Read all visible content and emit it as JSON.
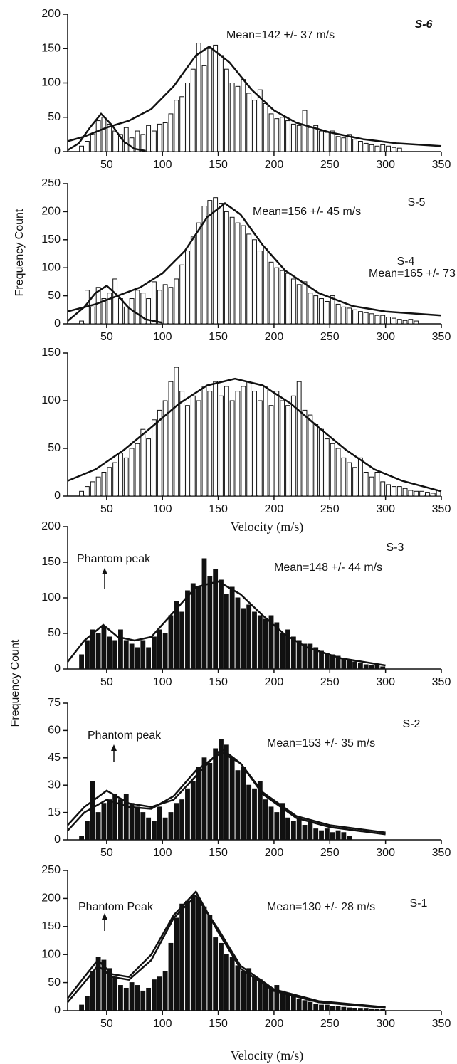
{
  "chart_data": [
    {
      "type": "histogram",
      "panel": "S-6",
      "annotation": "Mean=142 +/- 37 m/s",
      "color": "#ffffff",
      "xlim": [
        15,
        350
      ],
      "ylim": [
        0,
        200
      ],
      "xticks": [
        50,
        100,
        150,
        200,
        250,
        300,
        350
      ],
      "yticks": [
        0,
        50,
        100,
        150,
        200
      ],
      "bins": [
        25,
        30,
        35,
        40,
        45,
        50,
        55,
        60,
        65,
        70,
        75,
        80,
        85,
        90,
        95,
        100,
        105,
        110,
        115,
        120,
        125,
        130,
        135,
        140,
        145,
        150,
        155,
        160,
        165,
        170,
        175,
        180,
        185,
        190,
        195,
        200,
        205,
        210,
        215,
        220,
        225,
        230,
        235,
        240,
        245,
        250,
        255,
        260,
        265,
        270,
        275,
        280,
        285,
        290,
        295,
        300,
        305,
        310,
        315
      ],
      "counts": [
        8,
        15,
        25,
        45,
        50,
        40,
        30,
        25,
        35,
        20,
        30,
        25,
        38,
        30,
        40,
        42,
        55,
        75,
        80,
        100,
        120,
        158,
        125,
        150,
        155,
        140,
        120,
        100,
        95,
        105,
        85,
        75,
        90,
        70,
        55,
        48,
        50,
        45,
        40,
        38,
        60,
        35,
        38,
        30,
        28,
        30,
        22,
        20,
        25,
        18,
        15,
        12,
        10,
        8,
        10,
        8,
        6,
        5
      ],
      "curves": [
        {
          "x": [
            15,
            25,
            35,
            45,
            55,
            65,
            75,
            85
          ],
          "values": [
            2,
            12,
            35,
            55,
            38,
            15,
            4,
            1
          ]
        },
        {
          "x": [
            15,
            30,
            50,
            70,
            90,
            110,
            130,
            142,
            160,
            180,
            200,
            220,
            250,
            280,
            310,
            350
          ],
          "values": [
            15,
            22,
            35,
            45,
            62,
            95,
            140,
            153,
            130,
            90,
            60,
            42,
            28,
            18,
            12,
            8
          ]
        }
      ]
    },
    {
      "type": "histogram",
      "panel": "S-5",
      "annotation": "Mean=156 +/- 45 m/s",
      "ylabel": "Frequency Count",
      "color": "#ffffff",
      "xlim": [
        15,
        350
      ],
      "ylim": [
        0,
        250
      ],
      "xticks": [
        50,
        100,
        150,
        200,
        250,
        300,
        350
      ],
      "yticks": [
        0,
        50,
        100,
        150,
        200,
        250
      ],
      "bins": [
        25,
        30,
        35,
        40,
        45,
        50,
        55,
        60,
        65,
        70,
        75,
        80,
        85,
        90,
        95,
        100,
        105,
        110,
        115,
        120,
        125,
        130,
        135,
        140,
        145,
        150,
        155,
        160,
        165,
        170,
        175,
        180,
        185,
        190,
        195,
        200,
        205,
        210,
        215,
        220,
        225,
        230,
        235,
        240,
        245,
        250,
        255,
        260,
        265,
        270,
        275,
        280,
        285,
        290,
        295,
        300,
        305,
        310,
        315,
        320,
        325,
        330
      ],
      "counts": [
        5,
        60,
        30,
        65,
        45,
        55,
        80,
        45,
        30,
        45,
        60,
        55,
        45,
        75,
        60,
        70,
        65,
        80,
        105,
        130,
        155,
        180,
        210,
        220,
        225,
        215,
        200,
        190,
        180,
        175,
        160,
        150,
        130,
        135,
        110,
        100,
        95,
        90,
        80,
        70,
        75,
        55,
        50,
        45,
        40,
        50,
        35,
        30,
        28,
        25,
        22,
        20,
        18,
        15,
        15,
        12,
        10,
        8,
        6,
        8,
        5
      ],
      "curves": [
        {
          "x": [
            15,
            30,
            40,
            50,
            60,
            70,
            85,
            100
          ],
          "values": [
            5,
            30,
            55,
            68,
            50,
            28,
            8,
            2
          ]
        },
        {
          "x": [
            15,
            40,
            60,
            80,
            100,
            120,
            140,
            156,
            170,
            190,
            210,
            240,
            270,
            300,
            350
          ],
          "values": [
            22,
            35,
            50,
            65,
            90,
            130,
            190,
            215,
            195,
            140,
            95,
            55,
            32,
            22,
            15
          ]
        }
      ]
    },
    {
      "type": "histogram",
      "panel": "S-4",
      "annotation": "Mean=165 +/- 73",
      "xlabel": "Velocity (m/s)",
      "color": "#ffffff",
      "xlim": [
        15,
        350
      ],
      "ylim": [
        0,
        150
      ],
      "xticks": [
        50,
        100,
        150,
        200,
        250,
        300,
        350
      ],
      "yticks": [
        0,
        50,
        100,
        150
      ],
      "bins": [
        25,
        30,
        35,
        40,
        45,
        50,
        55,
        60,
        65,
        70,
        75,
        80,
        85,
        90,
        95,
        100,
        105,
        110,
        115,
        120,
        125,
        130,
        135,
        140,
        145,
        150,
        155,
        160,
        165,
        170,
        175,
        180,
        185,
        190,
        195,
        200,
        205,
        210,
        215,
        220,
        225,
        230,
        235,
        240,
        245,
        250,
        255,
        260,
        265,
        270,
        275,
        280,
        285,
        290,
        295,
        300,
        305,
        310,
        315,
        320,
        325,
        330,
        335,
        340,
        345,
        350
      ],
      "counts": [
        5,
        10,
        15,
        20,
        25,
        30,
        35,
        45,
        40,
        50,
        55,
        70,
        60,
        80,
        90,
        100,
        120,
        135,
        110,
        95,
        105,
        100,
        115,
        110,
        120,
        105,
        115,
        100,
        110,
        115,
        120,
        110,
        100,
        115,
        95,
        110,
        100,
        95,
        105,
        120,
        90,
        85,
        75,
        70,
        60,
        55,
        50,
        40,
        35,
        30,
        40,
        25,
        20,
        25,
        15,
        12,
        10,
        10,
        8,
        6,
        5,
        5,
        4,
        3,
        6
      ],
      "curves": [
        {
          "x": [
            15,
            40,
            65,
            90,
            115,
            140,
            165,
            190,
            215,
            240,
            265,
            290,
            315,
            350
          ],
          "values": [
            16,
            28,
            48,
            72,
            97,
            116,
            123,
            116,
            97,
            72,
            48,
            28,
            16,
            5
          ]
        }
      ]
    },
    {
      "type": "histogram",
      "panel": "S-3",
      "annotation": "Mean=148 +/- 44 m/s",
      "note": "Phantom peak",
      "color": "#111111",
      "xlim": [
        15,
        350
      ],
      "ylim": [
        0,
        200
      ],
      "xticks": [
        50,
        100,
        150,
        200,
        250,
        300,
        350
      ],
      "yticks": [
        0,
        50,
        100,
        150,
        200
      ],
      "bins": [
        25,
        30,
        35,
        40,
        45,
        50,
        55,
        60,
        65,
        70,
        75,
        80,
        85,
        90,
        95,
        100,
        105,
        110,
        115,
        120,
        125,
        130,
        135,
        140,
        145,
        150,
        155,
        160,
        165,
        170,
        175,
        180,
        185,
        190,
        195,
        200,
        205,
        210,
        215,
        220,
        225,
        230,
        235,
        240,
        245,
        250,
        255,
        260,
        265,
        270,
        275,
        280,
        285,
        290,
        295,
        300
      ],
      "counts": [
        20,
        40,
        55,
        50,
        60,
        45,
        40,
        55,
        40,
        35,
        30,
        40,
        30,
        45,
        55,
        50,
        75,
        95,
        80,
        110,
        120,
        115,
        155,
        130,
        140,
        125,
        105,
        115,
        100,
        85,
        90,
        80,
        75,
        70,
        75,
        65,
        50,
        55,
        45,
        40,
        35,
        35,
        30,
        25,
        22,
        20,
        18,
        15,
        12,
        10,
        8,
        6,
        5,
        6,
        3
      ],
      "curves": [
        {
          "x": [
            15,
            30,
            47,
            60,
            75,
            90,
            110,
            130,
            150,
            170,
            190,
            210,
            230,
            260,
            300
          ],
          "values": [
            10,
            40,
            62,
            45,
            40,
            45,
            80,
            115,
            123,
            105,
            75,
            48,
            30,
            15,
            5
          ]
        }
      ]
    },
    {
      "type": "histogram",
      "panel": "S-2",
      "annotation": "Mean=153 +/- 35  m/s",
      "note": "Phantom peak",
      "ylabel": "Frequency Count",
      "color": "#111111",
      "xlim": [
        15,
        350
      ],
      "ylim": [
        0,
        75
      ],
      "xticks": [
        50,
        100,
        150,
        200,
        250,
        300,
        350
      ],
      "yticks": [
        0,
        15,
        30,
        45,
        60,
        75
      ],
      "bins": [
        25,
        30,
        35,
        40,
        45,
        50,
        55,
        60,
        65,
        70,
        75,
        80,
        85,
        90,
        95,
        100,
        105,
        110,
        115,
        120,
        125,
        130,
        135,
        140,
        145,
        150,
        155,
        160,
        165,
        170,
        175,
        180,
        185,
        190,
        195,
        200,
        205,
        210,
        215,
        220,
        225,
        230,
        235,
        240,
        245,
        250,
        255,
        260,
        265,
        270
      ],
      "counts": [
        2,
        10,
        32,
        15,
        20,
        22,
        25,
        22,
        25,
        20,
        18,
        15,
        12,
        10,
        18,
        12,
        15,
        20,
        22,
        28,
        32,
        40,
        45,
        42,
        50,
        55,
        52,
        45,
        38,
        40,
        30,
        28,
        32,
        22,
        18,
        15,
        20,
        12,
        10,
        12,
        8,
        10,
        6,
        5,
        6,
        4,
        5,
        4,
        2
      ],
      "curves": [
        {
          "x": [
            15,
            30,
            50,
            70,
            90,
            110,
            130,
            153,
            170,
            190,
            220,
            250,
            300
          ],
          "values": [
            8,
            18,
            27,
            20,
            18,
            22,
            35,
            50,
            42,
            25,
            12,
            7,
            3
          ]
        },
        {
          "x": [
            15,
            30,
            50,
            70,
            90,
            110,
            130,
            153,
            170,
            190,
            220,
            250,
            300
          ],
          "values": [
            5,
            15,
            22,
            18,
            17,
            24,
            38,
            48,
            42,
            26,
            13,
            8,
            4
          ]
        }
      ]
    },
    {
      "type": "histogram",
      "panel": "S-1",
      "annotation": "Mean=130 +/- 28 m/s",
      "note": "Phantom Peak",
      "xlabel": "Velocity (m/s)",
      "color": "#111111",
      "xlim": [
        15,
        350
      ],
      "ylim": [
        0,
        250
      ],
      "xticks": [
        50,
        100,
        150,
        200,
        250,
        300,
        350
      ],
      "yticks": [
        0,
        50,
        100,
        150,
        200,
        250
      ],
      "bins": [
        25,
        30,
        35,
        40,
        45,
        50,
        55,
        60,
        65,
        70,
        75,
        80,
        85,
        90,
        95,
        100,
        105,
        110,
        115,
        120,
        125,
        130,
        135,
        140,
        145,
        150,
        155,
        160,
        165,
        170,
        175,
        180,
        185,
        190,
        195,
        200,
        205,
        210,
        215,
        220,
        225,
        230,
        235,
        240,
        245,
        250,
        255,
        260,
        265,
        270,
        275,
        280,
        285,
        290,
        295,
        300
      ],
      "counts": [
        10,
        25,
        70,
        95,
        90,
        75,
        60,
        45,
        40,
        50,
        45,
        35,
        40,
        55,
        60,
        70,
        120,
        165,
        190,
        195,
        205,
        200,
        185,
        170,
        130,
        120,
        100,
        95,
        80,
        70,
        75,
        60,
        55,
        45,
        40,
        45,
        35,
        30,
        25,
        20,
        18,
        15,
        12,
        10,
        10,
        8,
        7,
        6,
        5,
        4,
        3,
        3,
        2,
        2,
        2
      ],
      "curves": [
        {
          "x": [
            15,
            30,
            42,
            55,
            70,
            90,
            110,
            130,
            150,
            170,
            200,
            240,
            300
          ],
          "values": [
            22,
            60,
            90,
            65,
            60,
            100,
            170,
            212,
            140,
            75,
            35,
            15,
            5
          ]
        },
        {
          "x": [
            15,
            30,
            42,
            55,
            70,
            90,
            110,
            130,
            150,
            170,
            200,
            240,
            300
          ],
          "values": [
            15,
            50,
            80,
            60,
            55,
            90,
            165,
            205,
            145,
            80,
            38,
            17,
            6
          ]
        }
      ]
    }
  ]
}
